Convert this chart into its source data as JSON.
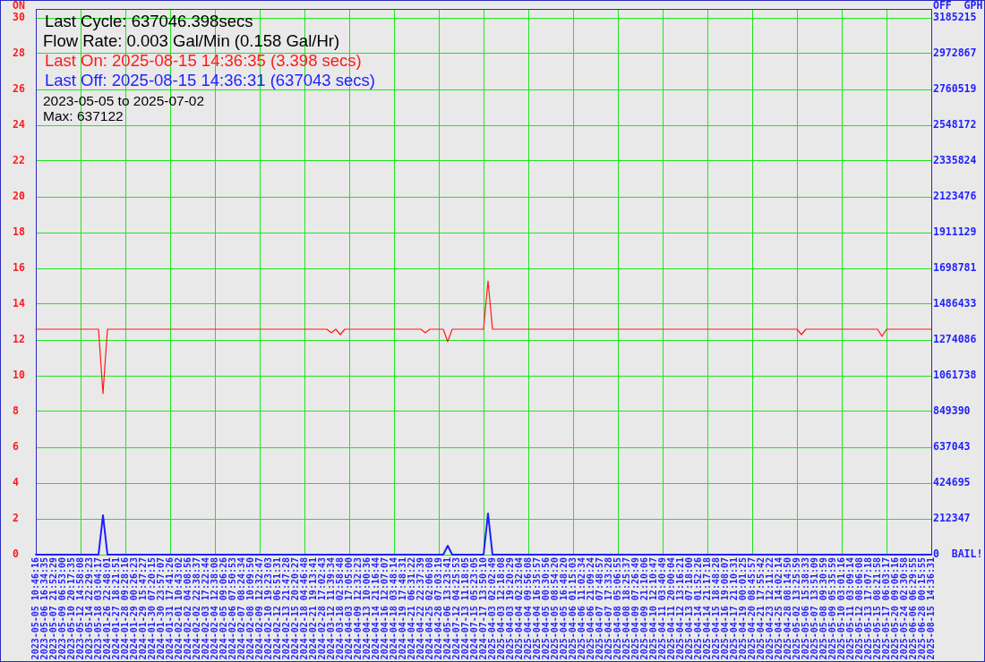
{
  "chart_data": {
    "type": "line",
    "categories": [
      "2023-05-05 10:46:16",
      null,
      "2023-05-06 16:34:35",
      null,
      "2023-05-07 21:52:29",
      null,
      "2023-05-09 06:53:00",
      null,
      "2023-05-10 20:17:35",
      null,
      "2023-05-12 14:58:08",
      null,
      "2023-05-14 22:29:23",
      null,
      "2023-05-18 03:04:17",
      null,
      "2024-01-26 22:48:01",
      null,
      "2024-01-27 18:21:51",
      null,
      "2024-01-28 09:28:16",
      null,
      "2024-01-29 00:26:23",
      null,
      "2024-01-29 15:47:27",
      null,
      "2024-01-30 07:20:15",
      null,
      "2024-01-30 23:57:07",
      null,
      "2024-01-31 17:41:26",
      null,
      "2024-02-01 10:43:02",
      null,
      "2024-02-02 04:08:56",
      null,
      "2024-02-02 22:38:37",
      null,
      "2024-02-03 17:22:44",
      null,
      "2024-02-04 12:38:08",
      null,
      "2024-02-05 09:06:26",
      null,
      "2024-02-06 07:50:53",
      null,
      "2024-02-07 08:24:34",
      null,
      "2024-02-08 10:09:50",
      null,
      "2024-02-09 12:32:47",
      null,
      "2024-02-10 19:23:03",
      null,
      "2024-02-12 06:51:31",
      null,
      "2024-02-13 21:47:28",
      null,
      "2024-02-15 20:20:27",
      null,
      "2024-02-18 04:46:48",
      null,
      "2024-02-21 19:13:41",
      null,
      "2024-02-28 17:02:43",
      null,
      "2024-03-12 11:39:34",
      null,
      "2024-03-18 02:58:48",
      null,
      "2024-04-03 17:05:00",
      null,
      "2024-04-09 12:32:23",
      null,
      "2024-04-13 10:00:36",
      null,
      "2024-04-14 21:16:44",
      null,
      "2024-04-16 12:07:07",
      null,
      "2024-04-18 03:48:14",
      null,
      "2024-04-19 17:48:31",
      null,
      "2024-04-21 06:31:22",
      null,
      "2024-04-22 22:37:39",
      null,
      "2024-04-25 02:06:08",
      null,
      "2024-04-28 07:03:19",
      null,
      "2024-05-06 13:23:41",
      null,
      "2024-07-12 04:25:53",
      null,
      "2024-07-13 11:18:05",
      null,
      "2024-07-15 05:23:05",
      null,
      "2024-07-17 13:50:10",
      null,
      "2025-04-03 02:02:49",
      null,
      "2025-04-03 12:18:08",
      null,
      "2025-04-03 19:20:29",
      null,
      "2025-04-04 02:32:04",
      null,
      "2025-04-04 09:56:08",
      null,
      "2025-04-04 16:35:57",
      null,
      "2025-04-05 00:30:56",
      null,
      "2025-04-05 08:54:20",
      null,
      "2025-04-05 16:48:20",
      null,
      "2025-04-06 01:15:03",
      null,
      "2025-04-06 11:02:34",
      null,
      "2025-04-06 21:09:24",
      null,
      "2025-04-07 07:48:57",
      null,
      "2025-04-07 17:33:28",
      null,
      "2025-04-08 05:06:55",
      null,
      "2025-04-08 18:25:37",
      null,
      "2025-04-09 07:26:49",
      null,
      "2025-04-09 21:10:06",
      null,
      "2025-04-10 12:10:47",
      null,
      "2025-04-11 03:40:49",
      null,
      "2025-04-11 20:00:04",
      null,
      "2025-04-12 13:16:21",
      null,
      "2025-04-13 07:18:00",
      null,
      "2025-04-14 01:52:26",
      null,
      "2025-04-14 21:17:18",
      null,
      "2025-04-15 18:48:28",
      null,
      "2025-04-16 19:08:07",
      null,
      "2025-04-17 21:10:31",
      null,
      "2025-04-19 00:01:25",
      null,
      "2025-04-20 08:45:57",
      null,
      "2025-04-21 17:55:42",
      null,
      "2025-04-23 12:11:22",
      null,
      "2025-04-25 14:02:14",
      null,
      "2025-04-28 08:14:50",
      null,
      "2025-05-02 13:25:59",
      null,
      "2025-05-06 15:38:33",
      null,
      "2025-05-07 13:51:09",
      null,
      "2025-05-08 09:30:59",
      null,
      "2025-05-09 05:35:59",
      null,
      "2025-05-10 03:01:16",
      null,
      "2025-05-11 03:09:14",
      null,
      "2025-05-12 08:06:08",
      null,
      "2025-05-13 17:07:18",
      null,
      "2025-05-15 08:21:58",
      null,
      "2025-05-17 06:03:17",
      null,
      "2025-05-20 09:06:16",
      null,
      "2025-05-24 02:30:58",
      null,
      "2025-06-06 06:29:55",
      null,
      "2025-06-28 00:15:55",
      null,
      "2025-08-15 14:36:31"
    ],
    "series": [
      {
        "color": "#ff1a1a",
        "values": [
          12.6,
          12.6,
          12.6,
          12.6,
          12.6,
          12.6,
          12.6,
          12.6,
          12.6,
          12.6,
          12.6,
          12.6,
          12.6,
          12.6,
          12.6,
          9.0,
          12.6,
          12.6,
          12.6,
          12.6,
          12.6,
          12.6,
          12.6,
          12.6,
          12.6,
          12.6,
          12.6,
          12.6,
          12.6,
          12.6,
          12.6,
          12.6,
          12.6,
          12.6,
          12.6,
          12.6,
          12.6,
          12.6,
          12.6,
          12.6,
          12.6,
          12.6,
          12.6,
          12.6,
          12.6,
          12.6,
          12.6,
          12.6,
          12.6,
          12.6,
          12.6,
          12.6,
          12.6,
          12.6,
          12.6,
          12.6,
          12.6,
          12.6,
          12.6,
          12.6,
          12.6,
          12.6,
          12.6,
          12.6,
          12.6,
          12.6,
          12.4,
          12.6,
          12.3,
          12.6,
          12.6,
          12.6,
          12.6,
          12.6,
          12.6,
          12.6,
          12.6,
          12.6,
          12.6,
          12.6,
          12.6,
          12.6,
          12.6,
          12.6,
          12.6,
          12.6,
          12.6,
          12.4,
          12.6,
          12.6,
          12.6,
          12.6,
          11.9,
          12.6,
          12.6,
          12.6,
          12.6,
          12.6,
          12.6,
          12.6,
          12.6,
          15.3,
          12.6,
          12.6,
          12.6,
          12.6,
          12.6,
          12.6,
          12.6,
          12.6,
          12.6,
          12.6,
          12.6,
          12.6,
          12.6,
          12.6,
          12.6,
          12.6,
          12.6,
          12.6,
          12.6,
          12.6,
          12.6,
          12.6,
          12.6,
          12.6,
          12.6,
          12.6,
          12.6,
          12.6,
          12.6,
          12.6,
          12.6,
          12.6,
          12.6,
          12.6,
          12.6,
          12.6,
          12.6,
          12.6,
          12.6,
          12.6,
          12.6,
          12.6,
          12.6,
          12.6,
          12.6,
          12.6,
          12.6,
          12.6,
          12.6,
          12.6,
          12.6,
          12.6,
          12.6,
          12.6,
          12.6,
          12.6,
          12.6,
          12.6,
          12.6,
          12.6,
          12.6,
          12.6,
          12.6,
          12.6,
          12.6,
          12.6,
          12.6,
          12.6,
          12.6,
          12.3,
          12.6,
          12.6,
          12.6,
          12.6,
          12.6,
          12.6,
          12.6,
          12.6,
          12.6,
          12.6,
          12.6,
          12.6,
          12.6,
          12.6,
          12.6,
          12.6,
          12.6,
          12.2,
          12.6,
          12.6,
          12.6,
          12.6,
          12.6,
          12.6,
          12.6,
          12.6,
          12.6,
          12.6,
          12.6
        ]
      },
      {
        "color": "#1f1fff",
        "axis": "y2",
        "values": [
          0,
          0,
          0,
          0,
          0,
          0,
          0,
          0,
          0,
          0,
          0,
          0,
          0,
          0,
          0,
          234000,
          0,
          0,
          0,
          0,
          0,
          0,
          0,
          0,
          0,
          0,
          0,
          0,
          0,
          0,
          0,
          0,
          0,
          0,
          0,
          0,
          0,
          0,
          0,
          0,
          0,
          0,
          0,
          0,
          0,
          0,
          0,
          0,
          0,
          0,
          0,
          0,
          0,
          0,
          0,
          0,
          0,
          0,
          0,
          0,
          0,
          0,
          0,
          0,
          0,
          0,
          0,
          0,
          0,
          0,
          0,
          0,
          0,
          0,
          0,
          0,
          0,
          0,
          0,
          0,
          0,
          0,
          0,
          0,
          0,
          0,
          0,
          0,
          0,
          0,
          0,
          0,
          53000,
          0,
          0,
          0,
          0,
          0,
          0,
          0,
          0,
          244000,
          0,
          0,
          0,
          0,
          0,
          0,
          0,
          0,
          0,
          0,
          0,
          0,
          0,
          0,
          0,
          0,
          0,
          0,
          0,
          0,
          0,
          0,
          0,
          0,
          0,
          0,
          0,
          0,
          0,
          0,
          0,
          0,
          0,
          0,
          0,
          0,
          0,
          0,
          0,
          0,
          0,
          0,
          0,
          0,
          0,
          0,
          0,
          0,
          0,
          0,
          0,
          0,
          0,
          0,
          0,
          0,
          0,
          0,
          0,
          0,
          0,
          0,
          0,
          0,
          0,
          0,
          0,
          0,
          0,
          0,
          0,
          0,
          0,
          0,
          0,
          0,
          0,
          0,
          0,
          0,
          0,
          0,
          0,
          0,
          0,
          0,
          0,
          0,
          0,
          0,
          0,
          0,
          0,
          0,
          0,
          0,
          0,
          0,
          0
        ]
      }
    ],
    "ylabel": "ON",
    "y2label": "OFF  GPH",
    "ylim": [
      0,
      30.5
    ],
    "yticks": [
      0,
      2,
      4,
      6,
      8,
      10,
      12,
      14,
      16,
      18,
      20,
      22,
      24,
      26,
      28,
      30
    ],
    "y2lim": [
      0,
      3238302
    ],
    "y2ticks": [
      {
        "value": 0,
        "label": "0  BAIL!"
      },
      212347,
      424695,
      637043,
      849390,
      1061738,
      1274086,
      1486433,
      1698781,
      1911129,
      2123476,
      2335824,
      2548172,
      2760519,
      2972867,
      3185215
    ],
    "annotations": [
      "Last Cycle: 637046.398secs",
      "Flow Rate: 0.003 Gal/Min (0.158 Gal/Hr)",
      "Last On: 2025-08-15 14:36:35 (3.398 secs)",
      "Last Off: 2025-08-15 14:36:31 (637043 secs)",
      "2023-05-05 to 2025-07-02",
      "Max: 637122"
    ],
    "grid": true,
    "legend": false,
    "marker": "none",
    "line_style": "solid"
  }
}
